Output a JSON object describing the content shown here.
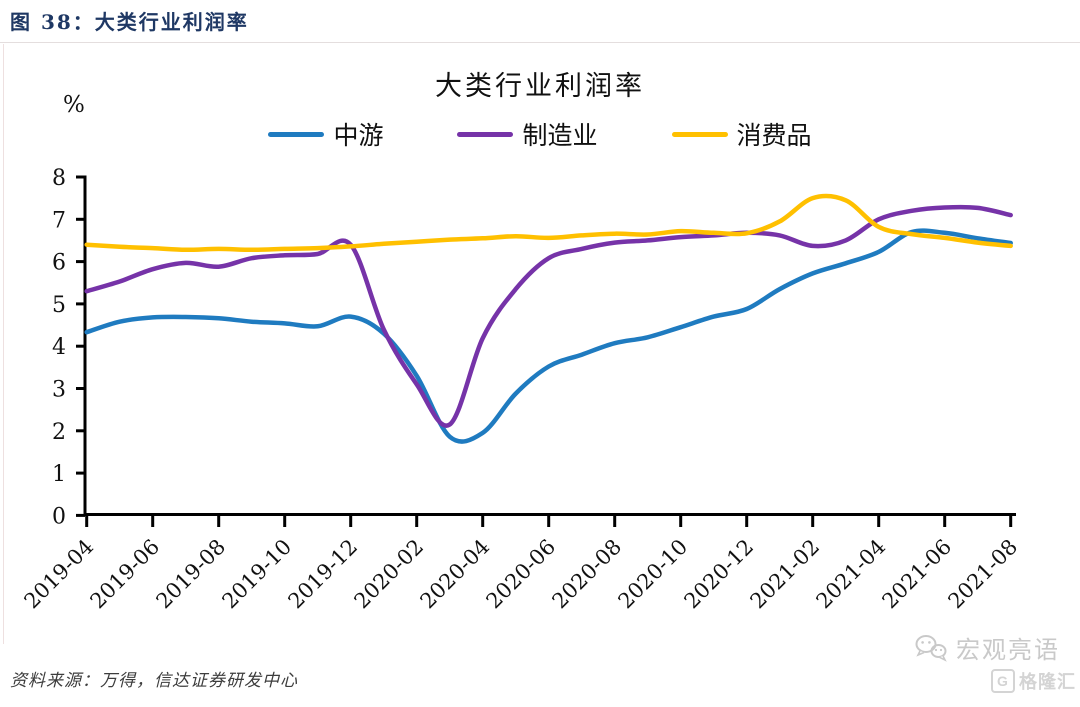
{
  "header": {
    "caption": "图 38：大类行业利润率"
  },
  "chart": {
    "title": "大类行业利润率",
    "unit_label": "%"
  },
  "source": {
    "label": "资料来源：万得，信达证券研发中心"
  },
  "watermark": {
    "account": "宏观亮语",
    "platform": "格隆汇",
    "logo_letter": "G",
    "wechat_icon": "wechat-icon",
    "color": "#c9c9c9"
  },
  "colors": {
    "header_text": "#1F3864",
    "axis": "#000000",
    "blue": "#1F7BC0",
    "purple": "#7633A8",
    "yellow": "#FFC000"
  },
  "chart_data": {
    "type": "line",
    "title": "大类行业利润率",
    "unit": "%",
    "grid": false,
    "legend_position": "top",
    "ylim": [
      0,
      8
    ],
    "yticks": [
      0,
      1,
      2,
      3,
      4,
      5,
      6,
      7,
      8
    ],
    "x": [
      "2019-04",
      "2019-05",
      "2019-06",
      "2019-07",
      "2019-08",
      "2019-09",
      "2019-10",
      "2019-11",
      "2019-12",
      "2020-01",
      "2020-02",
      "2020-03",
      "2020-04",
      "2020-05",
      "2020-06",
      "2020-07",
      "2020-08",
      "2020-09",
      "2020-10",
      "2020-11",
      "2020-12",
      "2021-01",
      "2021-02",
      "2021-03",
      "2021-04",
      "2021-05",
      "2021-06",
      "2021-07",
      "2021-08"
    ],
    "x_tick_labels": [
      "2019-04",
      "2019-06",
      "2019-08",
      "2019-10",
      "2019-12",
      "2020-02",
      "2020-04",
      "2020-06",
      "2020-08",
      "2020-10",
      "2020-12",
      "2021-02",
      "2021-04",
      "2021-06",
      "2021-08"
    ],
    "series": [
      {
        "name": "中游",
        "color": "#1F7BC0",
        "values": [
          4.33,
          4.58,
          4.68,
          4.69,
          4.66,
          4.58,
          4.54,
          4.47,
          4.7,
          4.3,
          3.3,
          1.86,
          1.95,
          2.88,
          3.52,
          3.8,
          4.07,
          4.21,
          4.45,
          4.7,
          4.88,
          5.35,
          5.72,
          5.96,
          6.23,
          6.7,
          6.68,
          6.55,
          6.44
        ]
      },
      {
        "name": "制造业",
        "color": "#7633A8",
        "values": [
          5.3,
          5.53,
          5.82,
          5.97,
          5.88,
          6.08,
          6.15,
          6.18,
          6.4,
          4.4,
          3.1,
          2.15,
          4.19,
          5.35,
          6.08,
          6.3,
          6.45,
          6.5,
          6.58,
          6.62,
          6.68,
          6.62,
          6.37,
          6.5,
          7.0,
          7.2,
          7.28,
          7.27,
          7.1
        ]
      },
      {
        "name": "消费品",
        "color": "#FFC000",
        "values": [
          6.4,
          6.35,
          6.32,
          6.28,
          6.3,
          6.28,
          6.3,
          6.32,
          6.36,
          6.42,
          6.47,
          6.52,
          6.55,
          6.6,
          6.56,
          6.62,
          6.66,
          6.64,
          6.72,
          6.68,
          6.67,
          6.95,
          7.5,
          7.45,
          6.82,
          6.65,
          6.56,
          6.45,
          6.37
        ]
      }
    ]
  }
}
